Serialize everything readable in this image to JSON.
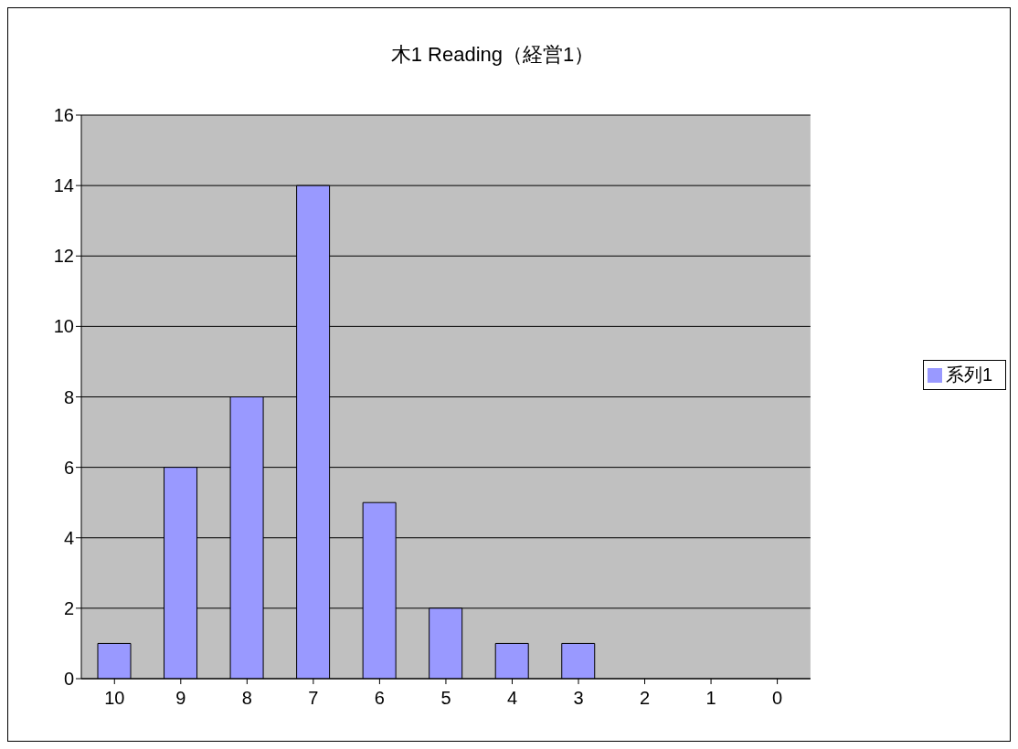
{
  "chart_data": {
    "type": "bar",
    "title": "木1  Reading（経営1）",
    "categories": [
      "10",
      "9",
      "8",
      "7",
      "6",
      "5",
      "4",
      "3",
      "2",
      "1",
      "0"
    ],
    "series": [
      {
        "name": "系列1",
        "color": "#9999ff",
        "values": [
          1,
          6,
          8,
          14,
          5,
          2,
          1,
          1,
          0,
          0,
          0
        ]
      }
    ],
    "ylim": [
      0,
      16
    ],
    "yticks": [
      0,
      2,
      4,
      6,
      8,
      10,
      12,
      14,
      16
    ],
    "grid": "y",
    "legend": "right"
  }
}
